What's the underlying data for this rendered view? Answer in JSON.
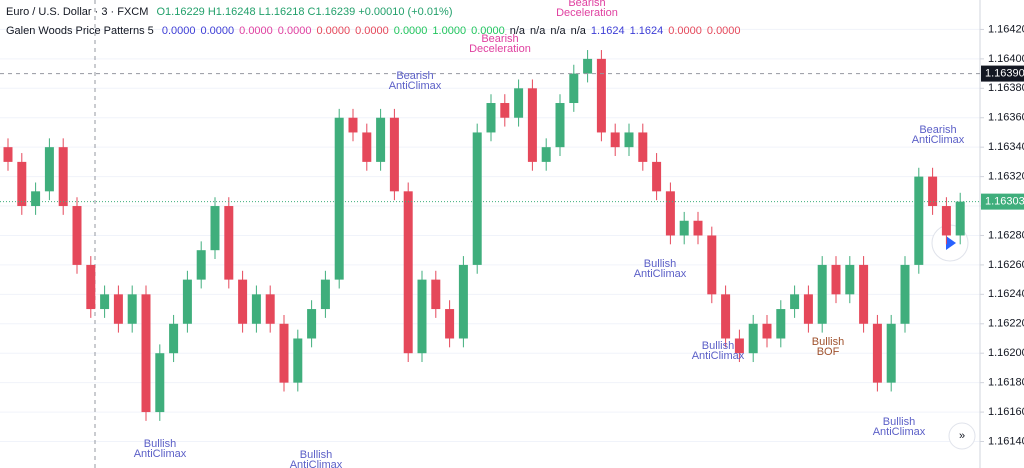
{
  "chart_data": {
    "type": "candlestick",
    "title": "Euro / U.S. Dollar · 3 · FXCM",
    "ohlc_label": "O1.16229 H1.16248 L1.16218 C1.16239 +0.00010 (+0.01%)",
    "indicator": {
      "name": "Galen Woods Price Patterns 5",
      "values": [
        {
          "text": "0.0000",
          "color": "#3d3dd6"
        },
        {
          "text": "0.0000",
          "color": "#3d3dd6"
        },
        {
          "text": "0.0000",
          "color": "#e040a0"
        },
        {
          "text": "0.0000",
          "color": "#e040a0"
        },
        {
          "text": "0.0000",
          "color": "#e5485a"
        },
        {
          "text": "0.0000",
          "color": "#e5485a"
        },
        {
          "text": "0.0000",
          "color": "#22c55e"
        },
        {
          "text": "1.0000",
          "color": "#22c55e"
        },
        {
          "text": "0.0000",
          "color": "#22c55e"
        },
        {
          "text": "n/a",
          "color": "#131722"
        },
        {
          "text": "n/a",
          "color": "#131722"
        },
        {
          "text": "n/a",
          "color": "#131722"
        },
        {
          "text": "n/a",
          "color": "#131722"
        },
        {
          "text": "1.1624",
          "color": "#3d3dd6"
        },
        {
          "text": "1.1624",
          "color": "#3d3dd6"
        },
        {
          "text": "0.0000",
          "color": "#e5485a"
        },
        {
          "text": "0.0000",
          "color": "#e5485a"
        }
      ]
    },
    "up_color": "#3fae7c",
    "down_color": "#e5485a",
    "open": [
      1.1634,
      1.1633,
      1.163,
      1.1631,
      1.1634,
      1.163,
      1.1626,
      1.1623,
      1.1624,
      1.1622,
      1.1624,
      1.1616,
      1.162,
      1.1622,
      1.1625,
      1.1627,
      1.163,
      1.1625,
      1.1622,
      1.1624,
      1.1622,
      1.1618,
      1.1621,
      1.1623,
      1.1625,
      1.1636,
      1.1635,
      1.1633,
      1.1636,
      1.1631,
      1.162,
      1.1625,
      1.1623,
      1.1621,
      1.1626,
      1.1635,
      1.1637,
      1.1636,
      1.1638,
      1.1633,
      1.1634,
      1.1637,
      1.1639,
      1.164,
      1.1635,
      1.1634,
      1.1635,
      1.1633,
      1.1631,
      1.1628,
      1.1629,
      1.1628,
      1.1624,
      1.1621,
      1.162,
      1.1622,
      1.1621,
      1.1623,
      1.1624,
      1.1622,
      1.1626,
      1.1624,
      1.1626,
      1.1622,
      1.1618,
      1.1622,
      1.1626,
      1.1632,
      1.163,
      1.1628
    ],
    "high": [
      1.16346,
      1.16336,
      1.16316,
      1.16346,
      1.16346,
      1.16306,
      1.16266,
      1.16246,
      1.16246,
      1.16246,
      1.16246,
      1.16206,
      1.16226,
      1.16256,
      1.16276,
      1.16306,
      1.16306,
      1.16256,
      1.16246,
      1.16246,
      1.16226,
      1.16216,
      1.16236,
      1.16256,
      1.16366,
      1.16366,
      1.16356,
      1.16366,
      1.16366,
      1.16316,
      1.16256,
      1.16256,
      1.16236,
      1.16266,
      1.16356,
      1.16376,
      1.16376,
      1.16386,
      1.16386,
      1.16346,
      1.16376,
      1.16396,
      1.16406,
      1.16406,
      1.16356,
      1.16356,
      1.16356,
      1.16336,
      1.16316,
      1.16296,
      1.16296,
      1.16286,
      1.16246,
      1.16216,
      1.16226,
      1.16226,
      1.16236,
      1.16246,
      1.16246,
      1.16266,
      1.16266,
      1.16266,
      1.16266,
      1.16226,
      1.16226,
      1.16266,
      1.16326,
      1.16326,
      1.16306,
      1.16309
    ],
    "low": [
      1.16324,
      1.16294,
      1.16294,
      1.16304,
      1.16294,
      1.16254,
      1.16224,
      1.16224,
      1.16214,
      1.16214,
      1.16154,
      1.16154,
      1.16194,
      1.16214,
      1.16244,
      1.16264,
      1.16244,
      1.16214,
      1.16214,
      1.16214,
      1.16174,
      1.16174,
      1.16204,
      1.16224,
      1.16244,
      1.16344,
      1.16324,
      1.16324,
      1.16304,
      1.16194,
      1.16194,
      1.16224,
      1.16204,
      1.16204,
      1.16254,
      1.16344,
      1.16354,
      1.16354,
      1.16324,
      1.16324,
      1.16334,
      1.16364,
      1.16384,
      1.16344,
      1.16334,
      1.16334,
      1.16324,
      1.16304,
      1.16274,
      1.16274,
      1.16274,
      1.16234,
      1.16204,
      1.16194,
      1.16194,
      1.16204,
      1.16204,
      1.16224,
      1.16214,
      1.16214,
      1.16234,
      1.16234,
      1.16214,
      1.16174,
      1.16174,
      1.16214,
      1.16254,
      1.16294,
      1.16274,
      1.16274
    ],
    "close": [
      1.1633,
      1.163,
      1.1631,
      1.1634,
      1.163,
      1.1626,
      1.1623,
      1.1624,
      1.1622,
      1.1624,
      1.1616,
      1.162,
      1.1622,
      1.1625,
      1.1627,
      1.163,
      1.1625,
      1.1622,
      1.1624,
      1.1622,
      1.1618,
      1.1621,
      1.1623,
      1.1625,
      1.1636,
      1.1635,
      1.1633,
      1.1636,
      1.1631,
      1.162,
      1.1625,
      1.1623,
      1.1621,
      1.1626,
      1.1635,
      1.1637,
      1.1636,
      1.1638,
      1.1633,
      1.1634,
      1.1637,
      1.1639,
      1.164,
      1.1635,
      1.1634,
      1.1635,
      1.1633,
      1.1631,
      1.1628,
      1.1629,
      1.1628,
      1.1624,
      1.1621,
      1.162,
      1.1622,
      1.1621,
      1.1623,
      1.1624,
      1.1622,
      1.1626,
      1.1624,
      1.1626,
      1.1622,
      1.1618,
      1.1622,
      1.1626,
      1.1632,
      1.163,
      1.1628,
      1.16303
    ],
    "ylim": [
      1.16122,
      1.1644
    ],
    "yticks": [
      {
        "value": 1.1614,
        "label": "1.16140"
      },
      {
        "value": 1.1616,
        "label": "1.16160"
      },
      {
        "value": 1.1618,
        "label": "1.16180"
      },
      {
        "value": 1.162,
        "label": "1.16200"
      },
      {
        "value": 1.1622,
        "label": "1.16220"
      },
      {
        "value": 1.1624,
        "label": "1.16240"
      },
      {
        "value": 1.1626,
        "label": "1.16260"
      },
      {
        "value": 1.1628,
        "label": "1.16280"
      },
      {
        "value": 1.163,
        "label": "1.16300"
      },
      {
        "value": 1.1632,
        "label": "1.16320"
      },
      {
        "value": 1.1634,
        "label": "1.16340"
      },
      {
        "value": 1.1636,
        "label": "1.16360"
      },
      {
        "value": 1.1638,
        "label": "1.16380"
      },
      {
        "value": 1.164,
        "label": "1.16400"
      },
      {
        "value": 1.1642,
        "label": "1.16420"
      }
    ],
    "grid": true,
    "crosshair_price": {
      "value": 1.1639,
      "label": "1.16390"
    },
    "last_price": 1.16303,
    "annotations": [
      {
        "lines": [
          "Bearish",
          "AntiClimax"
        ],
        "color": "#5b5fc7"
      },
      {
        "lines": [
          "Bearish",
          "Deceleration"
        ],
        "color": "#e040a0"
      },
      {
        "lines": [
          "Bearish",
          "Deceleration"
        ],
        "color": "#e040a0"
      },
      {
        "lines": [
          "Bullish",
          "AntiClimax"
        ],
        "color": "#5b5fc7"
      },
      {
        "lines": [
          "Bullish",
          "AntiClimax"
        ],
        "color": "#5b5fc7"
      },
      {
        "lines": [
          "Bullish",
          "AntiClimax"
        ],
        "color": "#5b5fc7"
      },
      {
        "lines": [
          "Bullish",
          "AntiClimax"
        ],
        "color": "#5b5fc7"
      },
      {
        "lines": [
          "Bullish",
          "BOF"
        ],
        "color": "#a0522d"
      },
      {
        "lines": [
          "Bearish",
          "AntiClimax"
        ],
        "color": "#5b5fc7"
      },
      {
        "lines": [
          "Bullish",
          "AntiClimax"
        ],
        "color": "#5b5fc7"
      }
    ]
  }
}
